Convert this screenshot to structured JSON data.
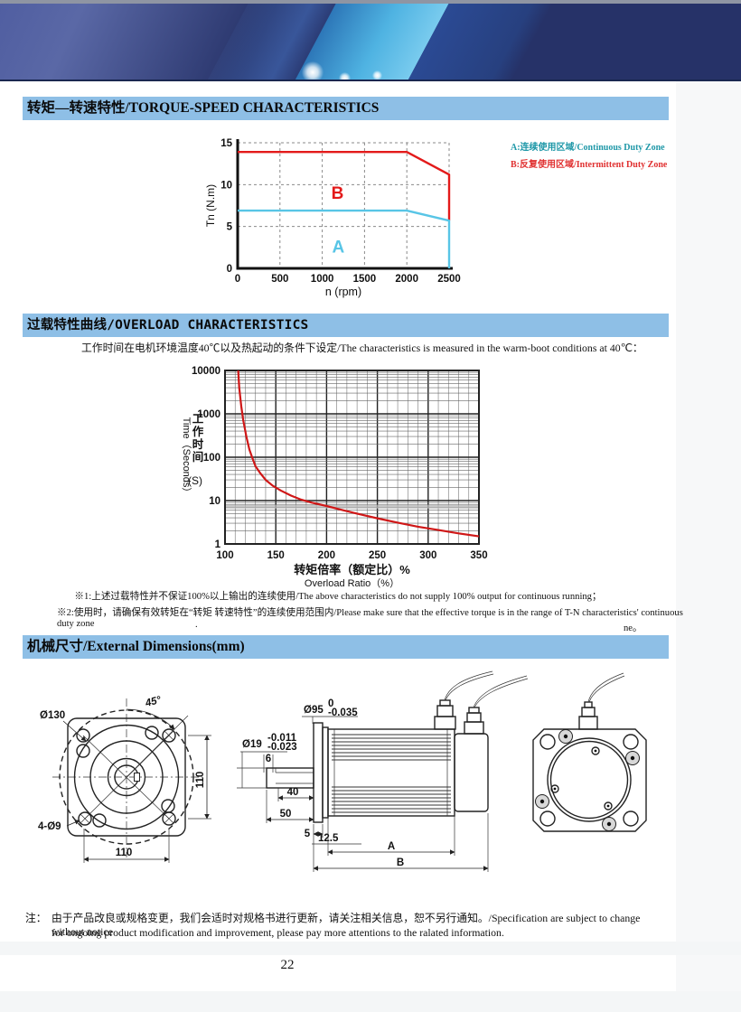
{
  "sections": {
    "torque_speed": {
      "title": "转矩—转速特性/TORQUE-SPEED CHARACTERISTICS"
    },
    "overload": {
      "title": "过载特性曲线/OVERLOAD CHARACTERISTICS",
      "description": "工作时间在电机环境温度40℃以及热起动的条件下设定/The characteristics is measured in the warm-boot conditions at 40℃：",
      "footnote1": "※1:上述过载特性并不保证100%以上输出的连续使用/The above characteristics do not supply 100% output for continuous running；",
      "footnote2": "※2:使用时，请确保有效转矩在“转矩 转速特性”的连续使用范围内/Please make sure that the effective torque is in the range of T-N characteristics' continuous duty zone",
      "footnote2_cont": "ne。",
      "stray_dot": "."
    },
    "dimensions": {
      "title": "机械尺寸/External Dimensions(mm)"
    }
  },
  "legend": {
    "a": {
      "label": "A:连续使用区域/Continuous Duty Zone",
      "color": "#1f98a8"
    },
    "b": {
      "label": "B:反复使用区域/Intermittent Duty Zone",
      "color": "#e03030"
    }
  },
  "chart_data": [
    {
      "type": "line",
      "title": "Torque-Speed Characteristics",
      "xlabel": "n (rpm)",
      "ylabel": "Tn (N.m)",
      "xlim": [
        0,
        2500
      ],
      "ylim": [
        0,
        15
      ],
      "xticks": [
        0,
        500,
        1000,
        1500,
        2000,
        2500
      ],
      "yticks": [
        0,
        5,
        10,
        15
      ],
      "grid": true,
      "legend_position": "right",
      "series": [
        {
          "name": "B Intermittent Duty Zone boundary",
          "color": "#e31a1a",
          "points": [
            [
              0,
              13.9
            ],
            [
              2000,
              13.9
            ],
            [
              2500,
              11.2
            ],
            [
              2500,
              5.7
            ]
          ]
        },
        {
          "name": "A Continuous Duty Zone boundary",
          "color": "#58c5e6",
          "points": [
            [
              0,
              6.9
            ],
            [
              2000,
              6.9
            ],
            [
              2500,
              5.7
            ],
            [
              2500,
              0
            ]
          ]
        }
      ],
      "zone_labels": [
        {
          "text": "B",
          "x": 1180,
          "y": 8.3,
          "color": "#e31a1a"
        },
        {
          "text": "A",
          "x": 1190,
          "y": 1.9,
          "color": "#58c5e6"
        }
      ]
    },
    {
      "type": "line",
      "title": "Overload Characteristics",
      "xlabel_zh": "转矩倍率（额定比）%",
      "xlabel_en": "Overload Ratio（%）",
      "ylabel_zh": "工作时间",
      "ylabel_en": "Time（Seconds）",
      "ylabel_unit": "(S)",
      "xlim": [
        100,
        350
      ],
      "ylim": [
        1,
        10000
      ],
      "yscale": "log",
      "xticks": [
        100,
        150,
        200,
        250,
        300,
        350
      ],
      "yticks": [
        10000,
        1000,
        100,
        10,
        1
      ],
      "grid": true,
      "series": [
        {
          "name": "overload time limit",
          "color": "#cf1717",
          "points": [
            [
              113,
              10000
            ],
            [
              114,
              4000
            ],
            [
              116,
              1500
            ],
            [
              118,
              700
            ],
            [
              121,
              300
            ],
            [
              124,
              150
            ],
            [
              127,
              95
            ],
            [
              130,
              62
            ],
            [
              135,
              42
            ],
            [
              140,
              30
            ],
            [
              147,
              22
            ],
            [
              155,
              17
            ],
            [
              165,
              13
            ],
            [
              175,
              10.5
            ],
            [
              185,
              9
            ],
            [
              200,
              7.5
            ],
            [
              215,
              6.1
            ],
            [
              230,
              5
            ],
            [
              250,
              3.9
            ],
            [
              270,
              3.1
            ],
            [
              290,
              2.5
            ],
            [
              310,
              2.1
            ],
            [
              330,
              1.75
            ],
            [
              350,
              1.5
            ]
          ]
        }
      ]
    }
  ],
  "dims": {
    "front": {
      "angle": "45°",
      "bolt_circle": "Ø130",
      "holes": "4-Ø9",
      "height": "110",
      "width": "110"
    },
    "side": {
      "pilot": "Ø95",
      "pilot_tol_top": "0",
      "pilot_tol_bot": "-0.035",
      "shaft": "Ø19",
      "shaft_tol_top": "-0.011",
      "shaft_tol_bot": "-0.023",
      "key_w": "6",
      "key_l": "40",
      "shaft_l": "50",
      "flange_t": "5",
      "front_len": "12.5",
      "body_len": "A",
      "total_len": "B"
    }
  },
  "note": {
    "prefix": "注：",
    "line1": "由于产品改良或规格变更，我们会适时对规格书进行更新，请关注相关信息，恕不另行通知。/Specification are subject to change without notice",
    "line2": "for ongoing product modification and improvement, please pay more attentions to the ralated information."
  },
  "page_number": "22"
}
